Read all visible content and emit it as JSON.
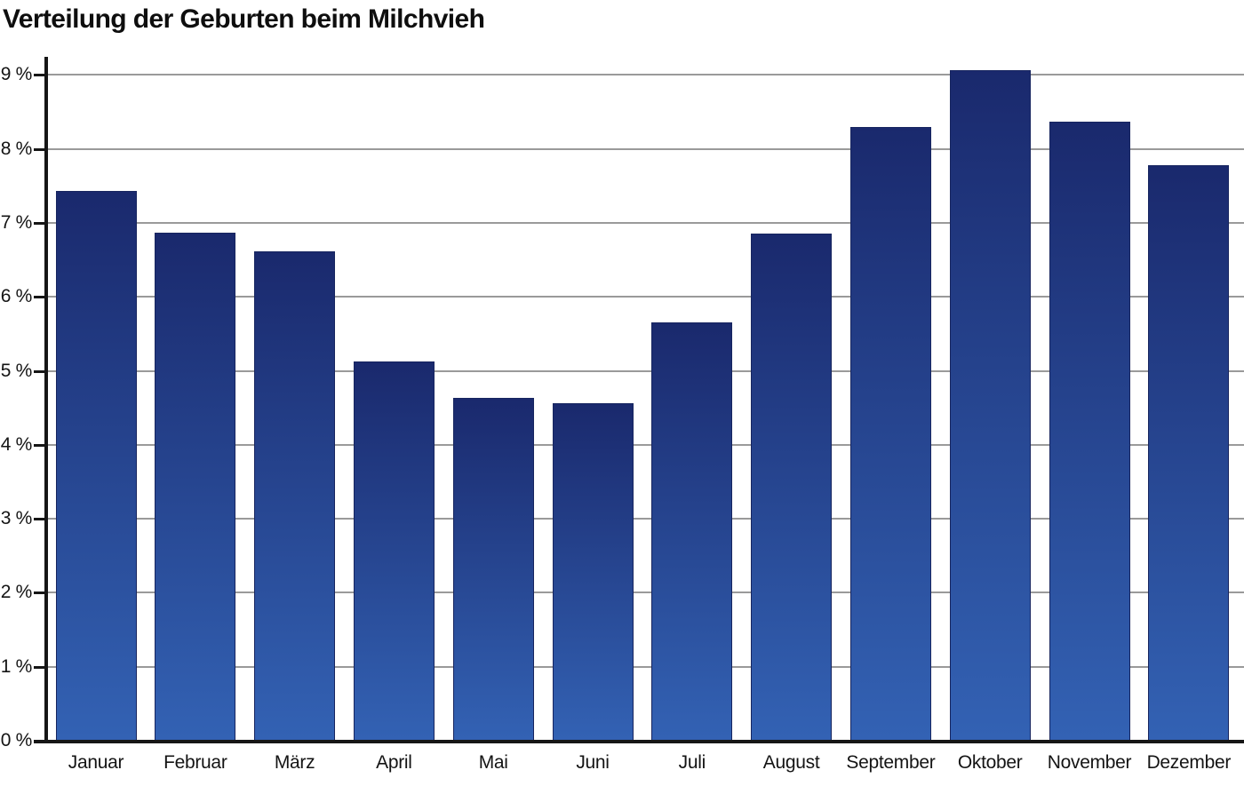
{
  "chart_data": {
    "type": "bar",
    "title": "Verteilung der Geburten beim Milchvieh",
    "xlabel": "",
    "ylabel": "",
    "unit": "%",
    "categories": [
      "Januar",
      "Februar",
      "März",
      "April",
      "Mai",
      "Juni",
      "Juli",
      "August",
      "September",
      "Oktober",
      "November",
      "Dezember"
    ],
    "values": [
      7.43,
      6.87,
      6.61,
      5.13,
      4.63,
      4.56,
      5.66,
      6.85,
      8.29,
      9.06,
      8.37,
      7.78
    ],
    "ylim": [
      0,
      9.25
    ],
    "y_ticks": [
      0,
      1,
      2,
      3,
      4,
      5,
      6,
      7,
      8,
      9
    ],
    "y_tick_labels": [
      "0 %",
      "1 %",
      "2 %",
      "3 %",
      "4 %",
      "5 %",
      "6 %",
      "7 %",
      "8 %",
      "9 %"
    ],
    "grid": true,
    "legend": false,
    "colors": {
      "bar_top": "#1a296d",
      "bar_bottom": "#3362b4",
      "bar_border": "#17255f",
      "gridline": "#9a9a9a",
      "axis": "#161616",
      "text": "#141414",
      "background": "#ffffff"
    }
  }
}
